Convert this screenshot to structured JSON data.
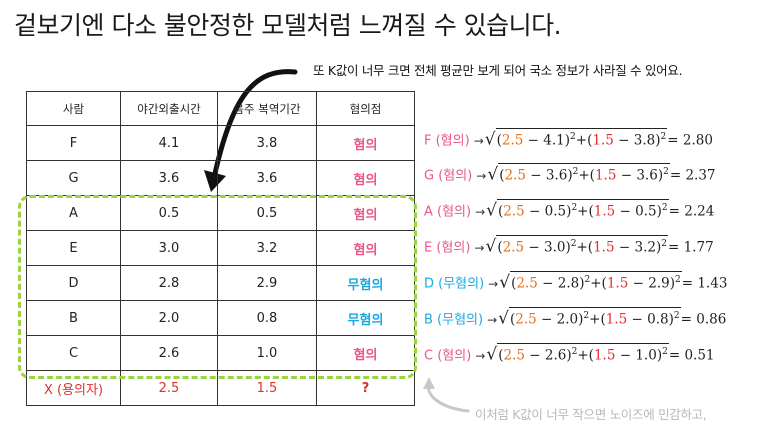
{
  "title": "겉보기엔 다소 불안정한 모델처럼 느껴질 수 있습니다.",
  "note_top": "또 K값이 너무 크면 전체 평균만 보게 되어 국소 정보가 사라질 수 있어요.",
  "note_bottom": "이처럼 K값이 너무 작으면 노이즈에 민감하고,",
  "table": {
    "headers": [
      "사람",
      "야간외출시간",
      "음주 복역기간",
      "혐의점"
    ],
    "rows": [
      {
        "person": "F",
        "a": "4.1",
        "b": "3.8",
        "label": "혐의",
        "type": "pink"
      },
      {
        "person": "G",
        "a": "3.6",
        "b": "3.6",
        "label": "혐의",
        "type": "pink"
      },
      {
        "person": "A",
        "a": "0.5",
        "b": "0.5",
        "label": "혐의",
        "type": "pink"
      },
      {
        "person": "E",
        "a": "3.0",
        "b": "3.2",
        "label": "혐의",
        "type": "pink"
      },
      {
        "person": "D",
        "a": "2.8",
        "b": "2.9",
        "label": "무혐의",
        "type": "blue"
      },
      {
        "person": "B",
        "a": "2.0",
        "b": "0.8",
        "label": "무혐의",
        "type": "blue"
      },
      {
        "person": "C",
        "a": "2.6",
        "b": "1.0",
        "label": "혐의",
        "type": "pink"
      }
    ],
    "query": {
      "person": "X (용의자)",
      "a": "2.5",
      "b": "1.5",
      "label": "?"
    }
  },
  "calcs": [
    {
      "label": "F (혐의)",
      "type": "pink",
      "q1": "2.5",
      "p1": "4.1",
      "q2": "1.5",
      "p2": "3.8",
      "result": "2.80"
    },
    {
      "label": "G (혐의)",
      "type": "pink",
      "q1": "2.5",
      "p1": "3.6",
      "q2": "1.5",
      "p2": "3.6",
      "result": "2.37"
    },
    {
      "label": "A (혐의)",
      "type": "pink",
      "q1": "2.5",
      "p1": "0.5",
      "q2": "1.5",
      "p2": "0.5",
      "result": "2.24"
    },
    {
      "label": "E (혐의)",
      "type": "pink",
      "q1": "2.5",
      "p1": "3.0",
      "q2": "1.5",
      "p2": "3.2",
      "result": "1.77"
    },
    {
      "label": "D (무혐의)",
      "type": "blue",
      "q1": "2.5",
      "p1": "2.8",
      "q2": "1.5",
      "p2": "2.9",
      "result": "1.43"
    },
    {
      "label": "B (무혐의)",
      "type": "blue",
      "q1": "2.5",
      "p1": "2.0",
      "q2": "1.5",
      "p2": "0.8",
      "result": "0.86"
    },
    {
      "label": "C (혐의)",
      "type": "pink",
      "q1": "2.5",
      "p1": "2.6",
      "q2": "1.5",
      "p2": "1.0",
      "result": "0.51"
    }
  ],
  "colors": {
    "pink": "#e9578c",
    "blue": "#1aa9e0",
    "red": "#e2302a",
    "orange": "#e56e1b",
    "green_dashed": "#9bd43f",
    "note_gray": "#b8b8b8"
  }
}
